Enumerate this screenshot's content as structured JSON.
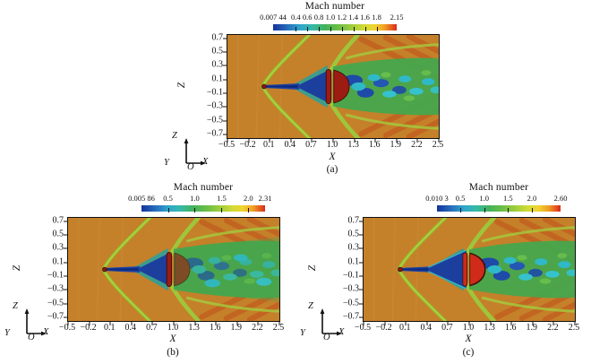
{
  "figure": {
    "background": "#ffffff",
    "colors": {
      "freestream_orange": "#c5802a",
      "shock_green": "#8cc437",
      "wake_green": "#46a64d",
      "wake_blue": "#1c3f9e",
      "turbulence_cyan": "#2fb9c8",
      "canopy_red": "#9c1b12",
      "canopy_red_bright": "#d8281f",
      "streak_red": "#c04518",
      "colorbar_gradient": [
        "#15339c",
        "#2565b8",
        "#2fa6cc",
        "#36b9a6",
        "#43b25c",
        "#67bd48",
        "#9ccd3d",
        "#d3dc35",
        "#f0d42f",
        "#f0a126",
        "#e45b1e",
        "#d8281f"
      ]
    },
    "panels": [
      {
        "id": "a",
        "label": "(a)",
        "colorbar": {
          "title": "Mach number",
          "tick_labels": [
            "0.007 44",
            "0.4",
            "0.6",
            "0.8",
            "1.0",
            "1.2",
            "1.4",
            "1.6",
            "1.8",
            "2.15"
          ],
          "tick_positions_pct": [
            0,
            18.3,
            27.7,
            37.0,
            46.3,
            55.7,
            65.0,
            74.3,
            83.7,
            100
          ]
        },
        "x_axis": {
          "label": "X",
          "ticks": [
            "−0.5",
            "−0.2",
            "0.1",
            "0.4",
            "0.7",
            "1.0",
            "1.3",
            "1.6",
            "1.9",
            "2.2",
            "2.5"
          ]
        },
        "z_axis": {
          "label": "Z",
          "ticks": [
            "0.7",
            "0.5",
            "0.3",
            "0.1",
            "−0.1",
            "−0.3",
            "−0.5",
            "−0.7"
          ]
        },
        "triad": {
          "up": "Z",
          "out": "Y",
          "origin": "O",
          "right": "X"
        }
      },
      {
        "id": "b",
        "label": "(b)",
        "colorbar": {
          "title": "Mach number",
          "tick_labels": [
            "0.005 86",
            "0.5",
            "1.0",
            "1.5",
            "2.0",
            "2.31"
          ],
          "tick_positions_pct": [
            0,
            21.4,
            43.1,
            64.8,
            86.5,
            100
          ]
        },
        "x_axis": {
          "label": "X",
          "ticks": [
            "−0.5",
            "−0.2",
            "0.1",
            "0.4",
            "0.7",
            "1.0",
            "1.3",
            "1.6",
            "1.9",
            "2.2",
            "2.5"
          ]
        },
        "z_axis": {
          "label": "Z",
          "ticks": [
            "0.7",
            "0.5",
            "0.3",
            "0.1",
            "−0.1",
            "−0.3",
            "−0.5",
            "−0.7"
          ]
        },
        "triad": {
          "up": "Z",
          "out": "Y",
          "origin": "O",
          "right": "X"
        }
      },
      {
        "id": "c",
        "label": "(c)",
        "colorbar": {
          "title": "Mach number",
          "tick_labels": [
            "0.010 3",
            "0.5",
            "1.0",
            "1.5",
            "2.0",
            "2.60"
          ],
          "tick_positions_pct": [
            0,
            18.9,
            38.2,
            57.5,
            76.8,
            100
          ]
        },
        "x_axis": {
          "label": "X",
          "ticks": [
            "−0.5",
            "−0.2",
            "0.1",
            "0.4",
            "0.7",
            "1.0",
            "1.3",
            "1.6",
            "1.9",
            "2.2",
            "2.5"
          ]
        },
        "z_axis": {
          "label": "Z",
          "ticks": [
            "0.7",
            "0.5",
            "0.3",
            "0.1",
            "−0.1",
            "−0.3",
            "−0.5",
            "−0.7"
          ]
        },
        "triad": {
          "up": "Z",
          "out": "Y",
          "origin": "O",
          "right": "X"
        }
      }
    ]
  },
  "chart_data": [
    {
      "type": "heatmap",
      "panel": "(a)",
      "title": "Mach number",
      "xlabel": "X",
      "ylabel": "Z",
      "xlim": [
        -0.5,
        2.5
      ],
      "ylim": [
        -0.75,
        0.75
      ],
      "x_ticks": [
        -0.5,
        -0.2,
        0.1,
        0.4,
        0.7,
        1.0,
        1.3,
        1.6,
        1.9,
        2.2,
        2.5
      ],
      "y_ticks": [
        0.7,
        0.5,
        0.3,
        0.1,
        -0.1,
        -0.3,
        -0.5,
        -0.7
      ],
      "grid": false,
      "colorbar": {
        "label": "Mach number",
        "position": "top",
        "min": 0.00744,
        "max": 2.15,
        "ticks": [
          0.00744,
          0.4,
          0.6,
          0.8,
          1.0,
          1.2,
          1.4,
          1.6,
          1.8,
          2.15
        ]
      },
      "field_description": "Supersonic Mach contour: orange freestream, bow shock from small capsule near X=0.05, dark-red parachute canopy band and half-disk near X=1.0, blue/cyan turbulent wake downstream, green shock lines and red reflected streaks"
    },
    {
      "type": "heatmap",
      "panel": "(b)",
      "title": "Mach number",
      "xlabel": "X",
      "ylabel": "Z",
      "xlim": [
        -0.5,
        2.5
      ],
      "ylim": [
        -0.75,
        0.75
      ],
      "x_ticks": [
        -0.5,
        -0.2,
        0.1,
        0.4,
        0.7,
        1.0,
        1.3,
        1.6,
        1.9,
        2.2,
        2.5
      ],
      "y_ticks": [
        0.7,
        0.5,
        0.3,
        0.1,
        -0.1,
        -0.3,
        -0.5,
        -0.7
      ],
      "grid": false,
      "colorbar": {
        "label": "Mach number",
        "position": "top",
        "min": 0.00586,
        "max": 2.31,
        "ticks": [
          0.00586,
          0.5,
          1.0,
          1.5,
          2.0,
          2.31
        ]
      },
      "field_description": "Same configuration with wider cyan/green turbulent wake behind the canopy"
    },
    {
      "type": "heatmap",
      "panel": "(c)",
      "title": "Mach number",
      "xlabel": "X",
      "ylabel": "Z",
      "xlim": [
        -0.5,
        2.5
      ],
      "ylim": [
        -0.75,
        0.75
      ],
      "x_ticks": [
        -0.5,
        -0.2,
        0.1,
        0.4,
        0.7,
        1.0,
        1.3,
        1.6,
        1.9,
        2.2,
        2.5
      ],
      "y_ticks": [
        0.7,
        0.5,
        0.3,
        0.1,
        -0.1,
        -0.3,
        -0.5,
        -0.7
      ],
      "grid": false,
      "colorbar": {
        "label": "Mach number",
        "position": "top",
        "min": 0.0103,
        "max": 2.6,
        "ticks": [
          0.0103,
          0.5,
          1.0,
          1.5,
          2.0,
          2.6
        ]
      },
      "field_description": "Same configuration with large dark-blue separated region ahead of a bright-red canopy"
    }
  ]
}
